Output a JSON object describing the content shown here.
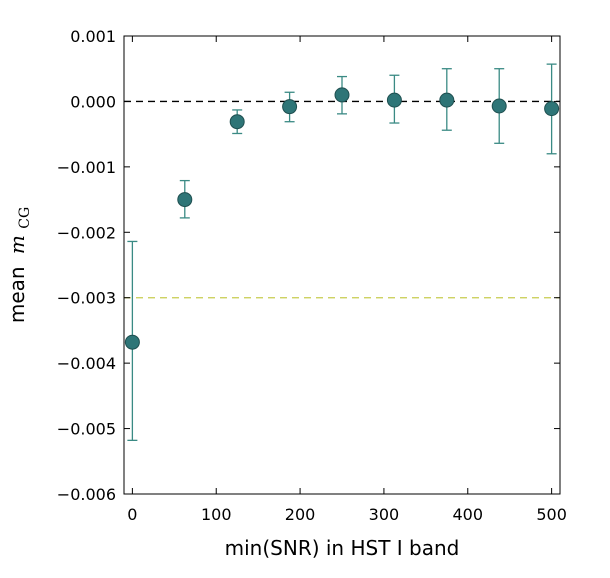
{
  "chart_data": {
    "type": "scatter",
    "title": "",
    "xlabel": "min(SNR) in HST I band",
    "ylabel": "mean",
    "ylabel_math": "m",
    "ylabel_subscript": "CG",
    "xlim": [
      -10,
      510
    ],
    "ylim": [
      -0.006,
      0.001
    ],
    "xticks": [
      0,
      100,
      200,
      300,
      400,
      500
    ],
    "xtick_labels": [
      "0",
      "100",
      "200",
      "300",
      "400",
      "500"
    ],
    "yticks": [
      0.001,
      0.0,
      -0.001,
      -0.002,
      -0.003,
      -0.004,
      -0.005,
      -0.006
    ],
    "ytick_labels": [
      "0.001",
      "0.000",
      "−0.001",
      "−0.002",
      "−0.003",
      "−0.004",
      "−0.005",
      "−0.006"
    ],
    "grid": false,
    "marker_color": "#2e7577",
    "errorbar_color": "#3a8a84",
    "series": [
      {
        "x": [
          0,
          62.5,
          125,
          187.5,
          250,
          312.5,
          375,
          437.5,
          500
        ],
        "y": [
          -0.00368,
          -0.0015,
          -0.00031,
          -8e-05,
          0.0001,
          2e-05,
          2e-05,
          -7e-05,
          -0.00011
        ],
        "yerr_low": [
          -0.00518,
          -0.00178,
          -0.00049,
          -0.00031,
          -0.00019,
          -0.00033,
          -0.00044,
          -0.00064,
          -0.0008
        ],
        "yerr_high": [
          -0.00214,
          -0.00121,
          -0.00013,
          0.00014,
          0.00038,
          0.0004,
          0.0005,
          0.0005,
          0.00057
        ]
      }
    ],
    "reference_lines": [
      {
        "y": 0.0,
        "color": "#000000",
        "style": "dashed"
      },
      {
        "y": -0.003,
        "color": "#c8cc4e",
        "style": "dashed"
      }
    ]
  }
}
